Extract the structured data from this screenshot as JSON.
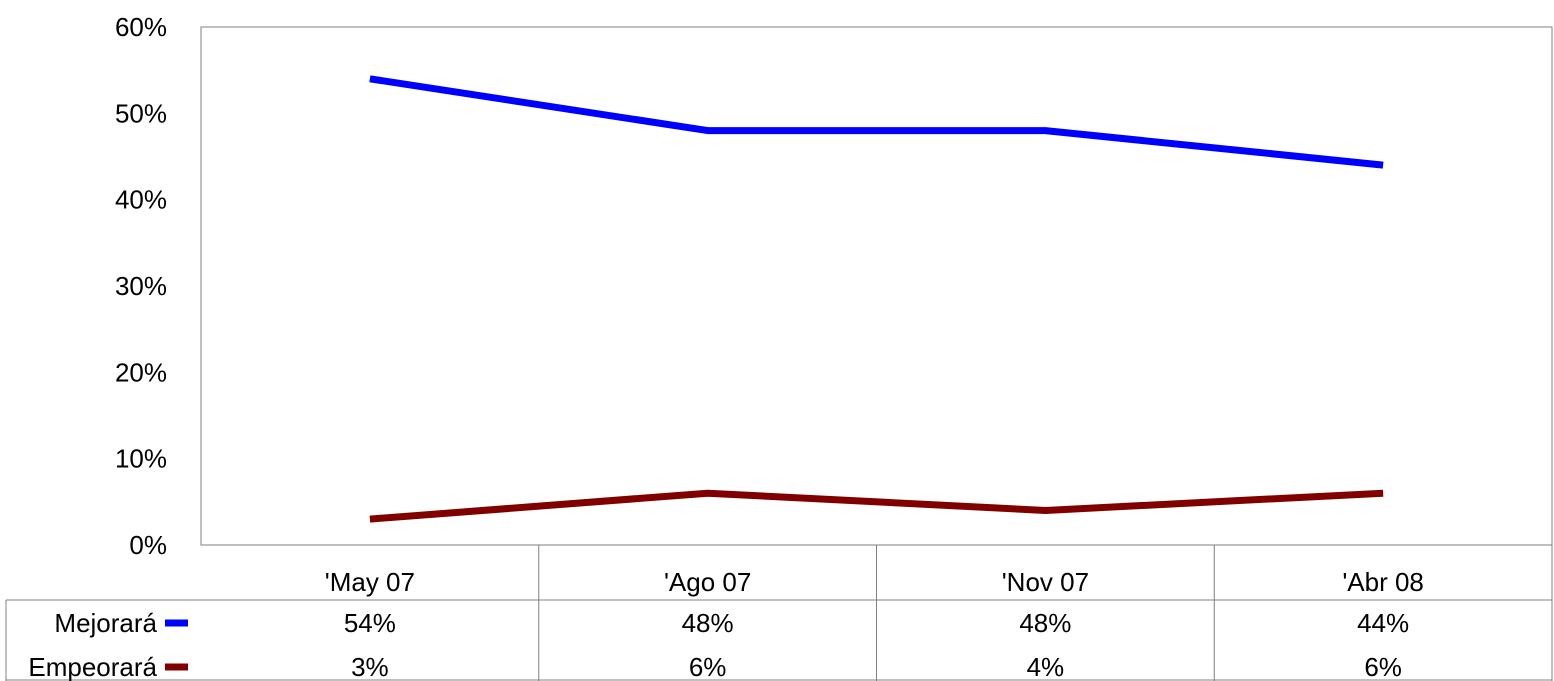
{
  "chart_data": {
    "type": "line",
    "categories": [
      "'May 07",
      "'Ago 07",
      "'Nov 07",
      "'Abr 08"
    ],
    "series": [
      {
        "name": "Mejorará",
        "values": [
          54,
          48,
          48,
          44
        ],
        "labels": [
          "54%",
          "48%",
          "48%",
          "44%"
        ],
        "color": "#0000ff"
      },
      {
        "name": "Empeorará",
        "values": [
          3,
          6,
          4,
          6
        ],
        "labels": [
          "3%",
          "6%",
          "4%",
          "6%"
        ],
        "color": "#800000"
      }
    ],
    "yticks": [
      0,
      10,
      20,
      30,
      40,
      50,
      60
    ],
    "ytick_labels": [
      "0%",
      "10%",
      "20%",
      "30%",
      "40%",
      "50%",
      "60%"
    ],
    "ylim": [
      0,
      60
    ],
    "grid": false,
    "legend": "data-table-below"
  }
}
